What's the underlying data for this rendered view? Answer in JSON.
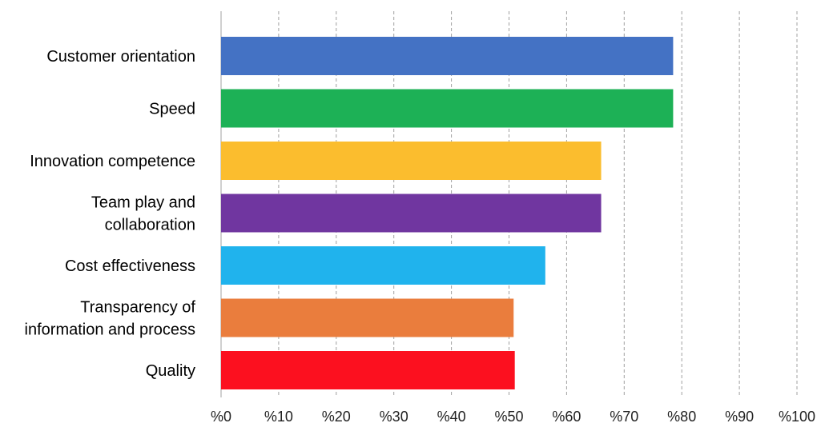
{
  "chart_data": {
    "type": "bar",
    "orientation": "horizontal",
    "title": "",
    "xlabel": "",
    "ylabel": "",
    "xlim": [
      0,
      100
    ],
    "grid": true,
    "categories": [
      [
        "Customer orientation"
      ],
      [
        "Speed"
      ],
      [
        "Innovation competence"
      ],
      [
        "Team play and",
        "collaboration"
      ],
      [
        "Cost effectiveness"
      ],
      [
        "Transparency of",
        "information and process"
      ],
      [
        "Quality"
      ]
    ],
    "values": [
      78.5,
      78.5,
      66,
      66,
      56.3,
      50.8,
      51
    ],
    "colors": [
      "#4472C4",
      "#1DB156",
      "#FBBD2E",
      "#7036A0",
      "#20B3ED",
      "#EA7D3D",
      "#FC101F"
    ],
    "ticks": [
      "%0",
      "%10",
      "%20",
      "%30",
      "%40",
      "%50",
      "%60",
      "%70",
      "%80",
      "%90",
      "%100"
    ]
  }
}
